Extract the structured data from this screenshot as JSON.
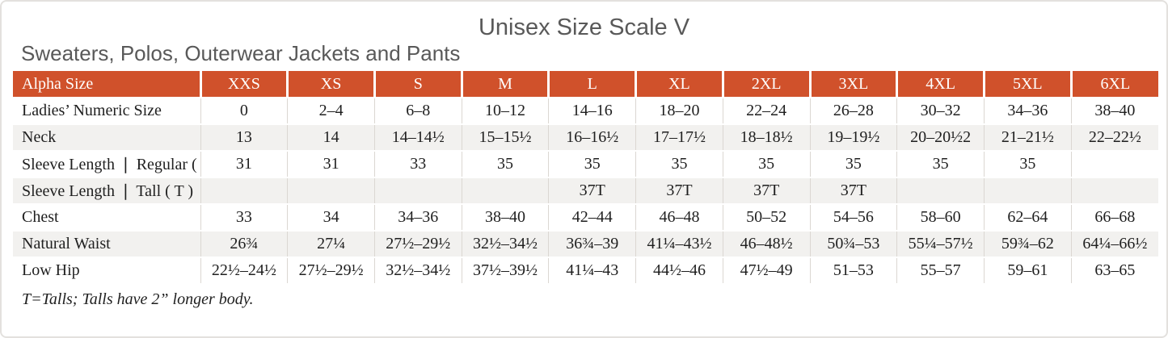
{
  "page": {
    "title": "Unisex Size Scale V",
    "subtitle": "Sweaters, Polos, Outerwear Jackets and Pants",
    "footnote": "T=Talls; Talls have 2” longer body."
  },
  "colors": {
    "header_bg": "#d0512b",
    "header_text": "#ffffff",
    "stripe_bg": "#f2f1ef",
    "grid_line": "#dbd7d2",
    "title_text": "#595959",
    "body_text": "#1f1f1f",
    "frame_line": "#e3e1de"
  },
  "table": {
    "header": [
      "Alpha Size",
      "XXS",
      "XS",
      "S",
      "M",
      "L",
      "XL",
      "2XL",
      "3XL",
      "4XL",
      "5XL",
      "6XL"
    ],
    "rows": [
      {
        "label": "Ladies’ Numeric Size",
        "values": [
          "0",
          "2–4",
          "6–8",
          "10–12",
          "14–16",
          "18–20",
          "22–24",
          "26–28",
          "30–32",
          "34–36",
          "38–40"
        ]
      },
      {
        "label": "Neck",
        "values": [
          "13",
          "14",
          "14–14½",
          "15–15½",
          "16–16½",
          "17–17½",
          "18–18½",
          "19–19½",
          "20–20½2",
          "21–21½",
          "22–22½"
        ]
      },
      {
        "label": "Sleeve Length ❘ Regular ( R )",
        "values": [
          "31",
          "31",
          "33",
          "35",
          "35",
          "35",
          "35",
          "35",
          "35",
          "35",
          ""
        ]
      },
      {
        "label": "Sleeve Length ❘ Tall ( T )",
        "values": [
          "",
          "",
          "",
          "",
          "37T",
          "37T",
          "37T",
          "37T",
          "",
          "",
          ""
        ]
      },
      {
        "label": "Chest",
        "values": [
          "33",
          "34",
          "34–36",
          "38–40",
          "42–44",
          "46–48",
          "50–52",
          "54–56",
          "58–60",
          "62–64",
          "66–68"
        ]
      },
      {
        "label": "Natural Waist",
        "values": [
          "26¾",
          "27¼",
          "27½–29½",
          "32½–34½",
          "36¾–39",
          "41¼–43½",
          "46–48½",
          "50¾–53",
          "55¼–57½",
          "59¾–62",
          "64¼–66½"
        ]
      },
      {
        "label": "Low Hip",
        "values": [
          "22½–24½",
          "27½–29½",
          "32½–34½",
          "37½–39½",
          "41¼–43",
          "44½–46",
          "47½–49",
          "51–53",
          "55–57",
          "59–61",
          "63–65"
        ]
      }
    ],
    "stripe_rows": [
      1,
      3,
      5
    ]
  }
}
